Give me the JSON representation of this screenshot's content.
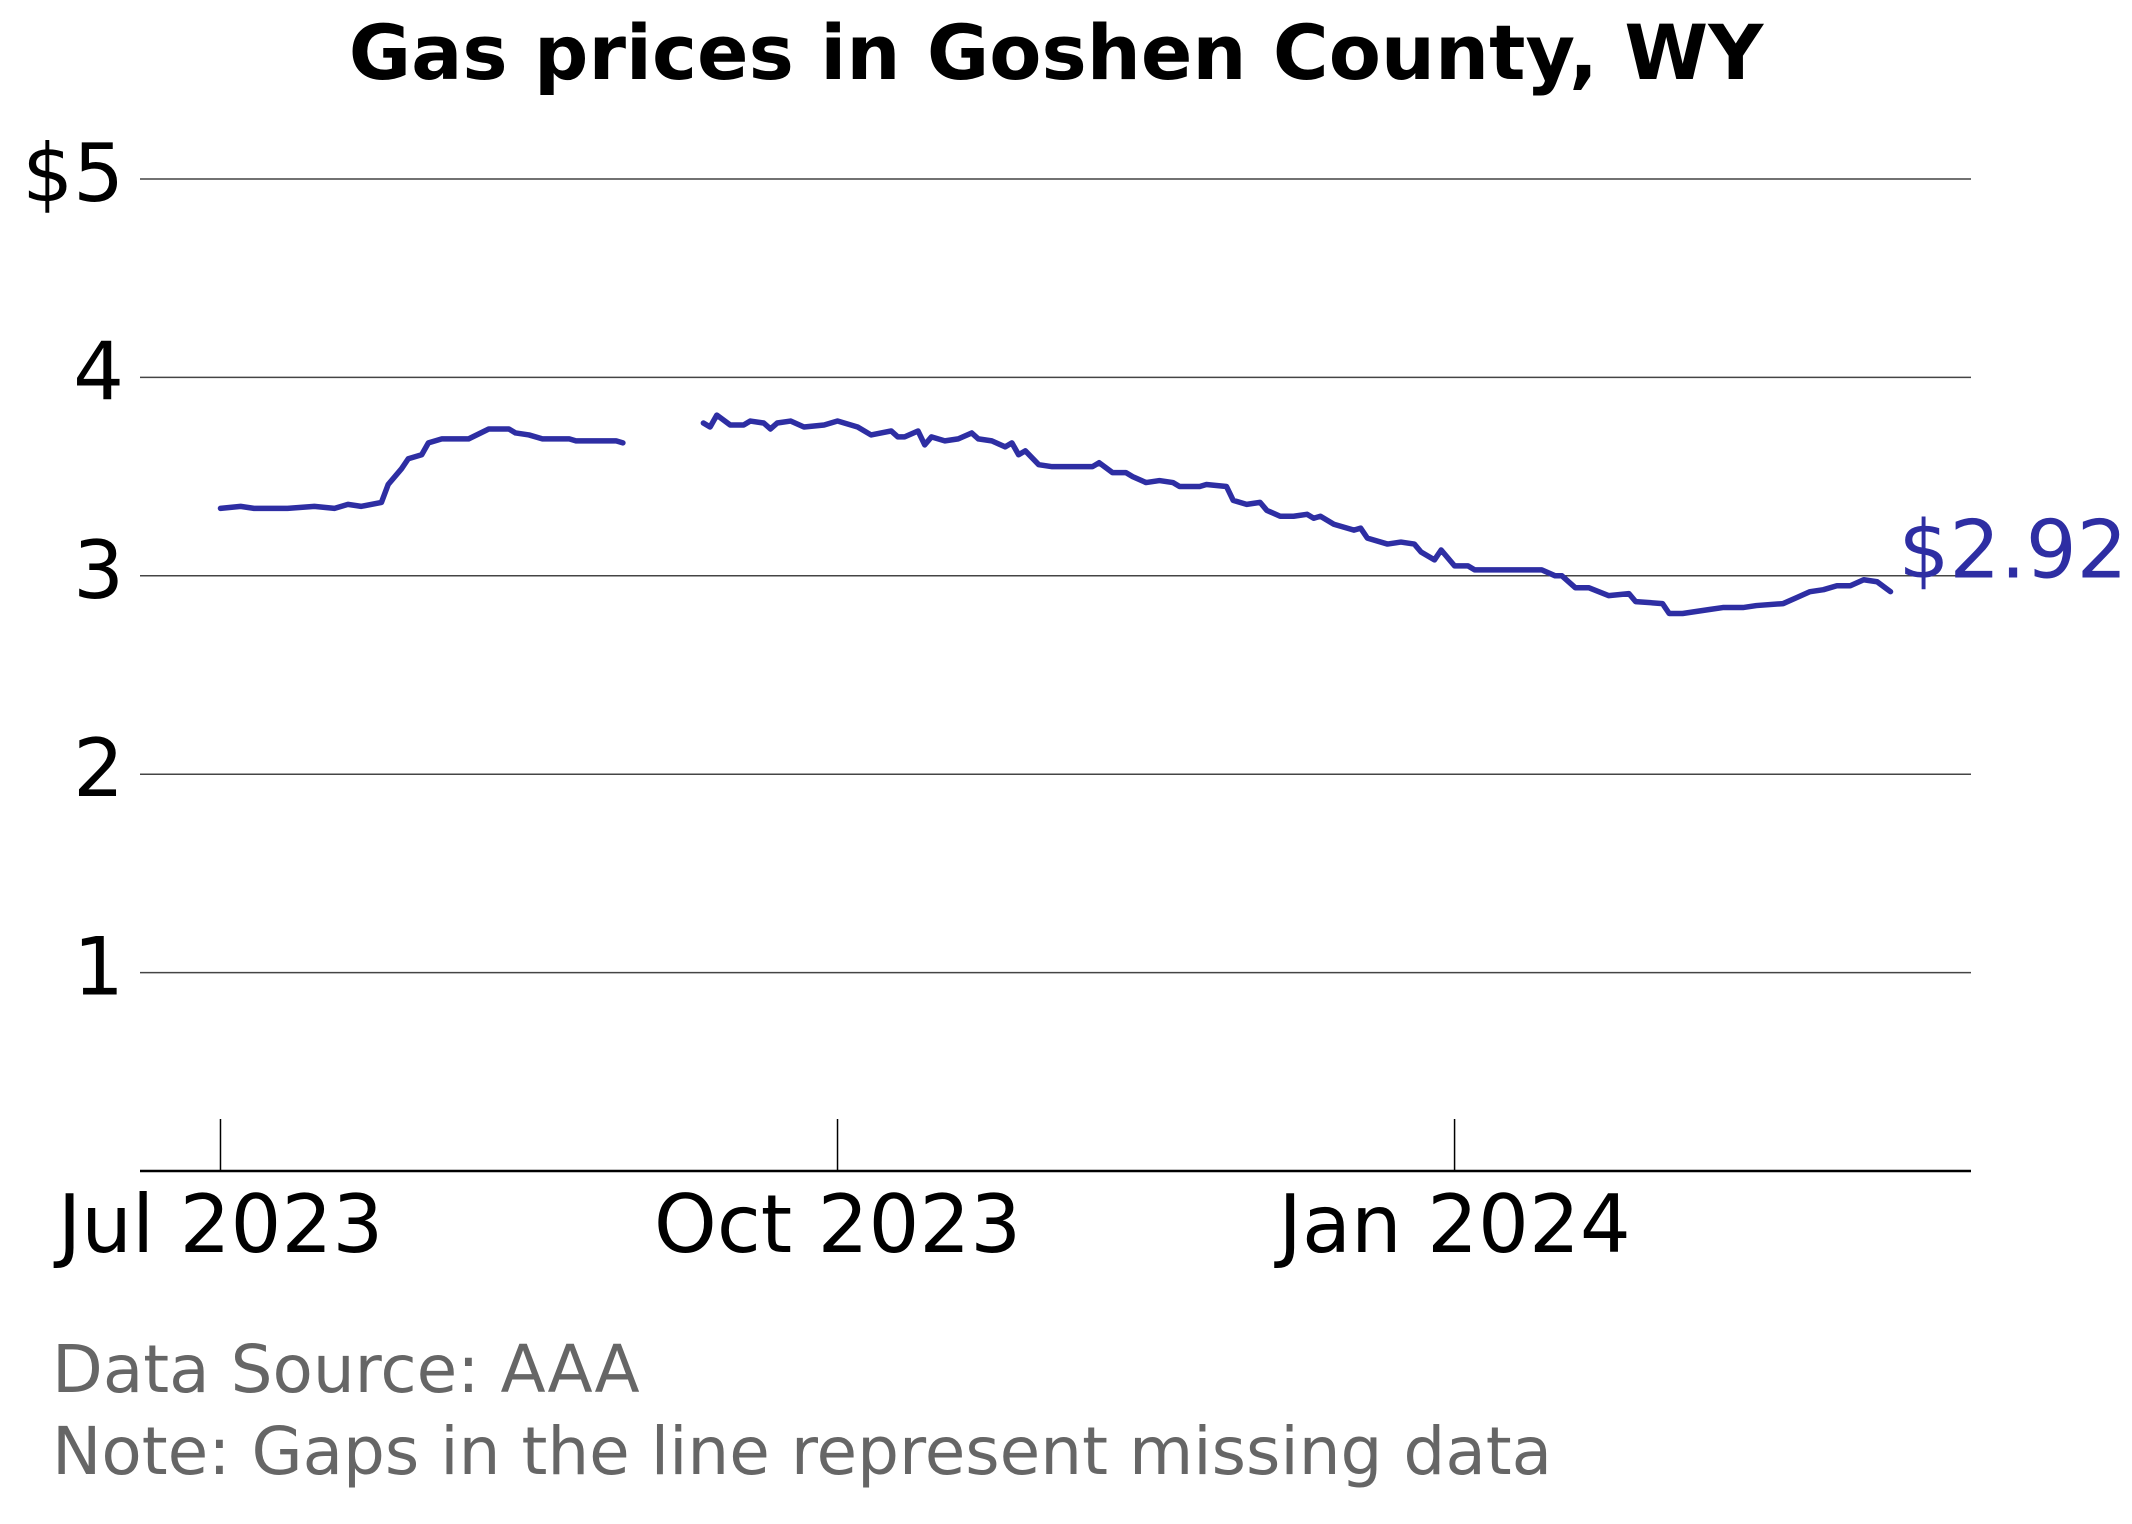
{
  "chart_data": {
    "type": "line",
    "title": "Gas prices in Goshen County, WY",
    "color": "#2e2ea3",
    "x": [
      0,
      3,
      5,
      10,
      14,
      17,
      19,
      21,
      24,
      25,
      27,
      28,
      30,
      31,
      33,
      37,
      40,
      43,
      44,
      46,
      48,
      52,
      53,
      59,
      60,
      66,
      72,
      73,
      74,
      76,
      78,
      79,
      81,
      82,
      83,
      85,
      87,
      90,
      92,
      95,
      97,
      100,
      101,
      102,
      104,
      105,
      106,
      108,
      110,
      112,
      113,
      115,
      117,
      118,
      119,
      120,
      122,
      124,
      130,
      131,
      133,
      135,
      136,
      138,
      140,
      142,
      143,
      146,
      147,
      150,
      151,
      152,
      153,
      155,
      156,
      158,
      160,
      162,
      163,
      164,
      166,
      169,
      170,
      171,
      174,
      176,
      178,
      179,
      181,
      182,
      184,
      186,
      187,
      190,
      192,
      195,
      197,
      199,
      200,
      202,
      204,
      207,
      210,
      211,
      215,
      216,
      218,
      220,
      222,
      224,
      227,
      229,
      233,
      235,
      237,
      239,
      241,
      243,
      245,
      247,
      249
    ],
    "values": [
      3.34,
      3.35,
      3.34,
      3.34,
      3.35,
      3.34,
      3.36,
      3.35,
      3.37,
      3.46,
      3.54,
      3.59,
      3.61,
      3.67,
      3.69,
      3.69,
      3.74,
      3.74,
      3.72,
      3.71,
      3.69,
      3.69,
      3.68,
      3.68,
      3.67,
      null,
      3.77,
      3.75,
      3.81,
      3.76,
      3.76,
      3.78,
      3.77,
      3.74,
      3.77,
      3.78,
      3.75,
      3.76,
      3.78,
      3.75,
      3.71,
      3.73,
      3.7,
      3.7,
      3.73,
      3.66,
      3.7,
      3.68,
      3.69,
      3.72,
      3.69,
      3.68,
      3.65,
      3.67,
      3.61,
      3.63,
      3.56,
      3.55,
      3.55,
      3.57,
      3.52,
      3.52,
      3.5,
      3.47,
      3.48,
      3.47,
      3.45,
      3.45,
      3.46,
      3.45,
      3.38,
      3.37,
      3.36,
      3.37,
      3.33,
      3.3,
      3.3,
      3.31,
      3.29,
      3.3,
      3.26,
      3.23,
      3.24,
      3.19,
      3.16,
      3.17,
      3.16,
      3.12,
      3.08,
      3.13,
      3.05,
      3.05,
      3.03,
      3.03,
      3.03,
      3.03,
      3.03,
      3.0,
      3.0,
      2.94,
      2.94,
      2.9,
      2.91,
      2.87,
      2.86,
      2.81,
      2.81,
      2.82,
      2.83,
      2.84,
      2.84,
      2.85,
      2.86,
      2.89,
      2.92,
      2.93,
      2.95,
      2.95,
      2.98,
      2.97,
      2.92
    ],
    "end_label": "$2.92",
    "xlim": [
      -12,
      261
    ],
    "xticks": [
      {
        "value": 0,
        "label": "Jul 2023"
      },
      {
        "value": 92,
        "label": "Oct 2023"
      },
      {
        "value": 184,
        "label": "Jan 2024"
      }
    ],
    "ylim": [
      0,
      5
    ],
    "yticks": [
      1,
      2,
      3,
      4,
      {
        "value": 5,
        "label": "$5"
      }
    ],
    "grid": true,
    "source": "Data Source: AAA",
    "note": "Note: Gaps in the line represent missing data"
  }
}
